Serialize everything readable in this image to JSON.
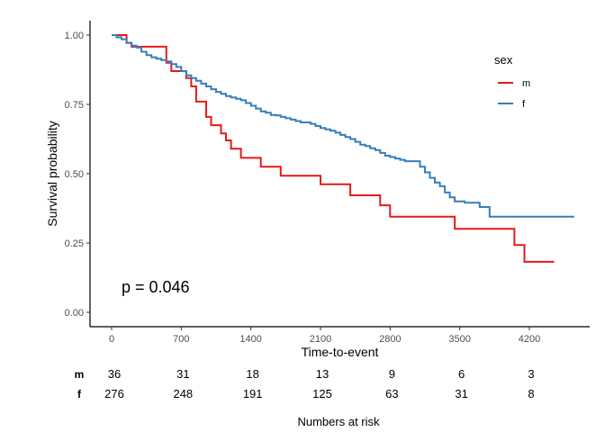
{
  "chart_data": {
    "type": "line",
    "xlabel": "Time-to-event",
    "ylabel": "Survival probability",
    "xlim": [
      -200,
      4800
    ],
    "ylim": [
      -0.05,
      1.05
    ],
    "x_ticks": [
      0,
      700,
      1400,
      2100,
      2800,
      3500,
      4200
    ],
    "y_ticks": [
      0.0,
      0.25,
      0.5,
      0.75,
      1.0
    ],
    "y_tick_labels": [
      "0.00",
      "0.25",
      "0.50",
      "0.75",
      "1.00"
    ],
    "grid": false,
    "legend": {
      "title": "sex",
      "placement": "right"
    },
    "annotation": "p = 0.046",
    "series": [
      {
        "name": "m",
        "color": "#e41a1c",
        "x": [
          0,
          150,
          200,
          250,
          550,
          600,
          750,
          800,
          850,
          950,
          1000,
          1100,
          1150,
          1200,
          1300,
          1500,
          1700,
          2100,
          2400,
          2700,
          2800,
          3450,
          4050,
          4150,
          4450
        ],
        "y": [
          1.0,
          0.972,
          0.958,
          0.958,
          0.9,
          0.87,
          0.845,
          0.815,
          0.76,
          0.705,
          0.675,
          0.645,
          0.62,
          0.59,
          0.557,
          0.525,
          0.493,
          0.462,
          0.422,
          0.386,
          0.345,
          0.301,
          0.243,
          0.182,
          0.182
        ]
      },
      {
        "name": "f",
        "color": "#377eb8",
        "x": [
          0,
          50,
          100,
          150,
          200,
          250,
          300,
          350,
          400,
          450,
          500,
          550,
          600,
          650,
          700,
          750,
          800,
          850,
          900,
          950,
          1000,
          1050,
          1100,
          1150,
          1200,
          1250,
          1300,
          1350,
          1400,
          1450,
          1500,
          1550,
          1600,
          1650,
          1700,
          1750,
          1800,
          1850,
          1900,
          1950,
          2000,
          2050,
          2100,
          2150,
          2200,
          2250,
          2300,
          2350,
          2400,
          2450,
          2500,
          2550,
          2600,
          2650,
          2700,
          2750,
          2800,
          2850,
          2900,
          2950,
          3000,
          3100,
          3150,
          3200,
          3250,
          3300,
          3350,
          3400,
          3450,
          3550,
          3700,
          3800,
          3850,
          4000,
          4200,
          4400,
          4650
        ],
        "y": [
          1.0,
          0.992,
          0.985,
          0.972,
          0.962,
          0.955,
          0.94,
          0.928,
          0.92,
          0.915,
          0.91,
          0.905,
          0.895,
          0.885,
          0.87,
          0.855,
          0.845,
          0.835,
          0.825,
          0.815,
          0.805,
          0.795,
          0.788,
          0.78,
          0.775,
          0.77,
          0.765,
          0.755,
          0.745,
          0.735,
          0.725,
          0.72,
          0.712,
          0.71,
          0.705,
          0.7,
          0.695,
          0.69,
          0.685,
          0.685,
          0.68,
          0.672,
          0.665,
          0.66,
          0.655,
          0.648,
          0.64,
          0.632,
          0.625,
          0.615,
          0.605,
          0.6,
          0.592,
          0.585,
          0.575,
          0.565,
          0.56,
          0.555,
          0.55,
          0.545,
          0.545,
          0.525,
          0.505,
          0.485,
          0.468,
          0.455,
          0.432,
          0.415,
          0.4,
          0.395,
          0.38,
          0.345,
          0.345,
          0.345,
          0.345,
          0.345,
          0.345
        ]
      }
    ],
    "risk_table": {
      "title": "Numbers at risk",
      "times": [
        0,
        700,
        1400,
        2100,
        2800,
        3500,
        4200
      ],
      "rows": [
        {
          "label": "m",
          "values": [
            "36",
            "31",
            "18",
            "13",
            "9",
            "6",
            "3"
          ]
        },
        {
          "label": "f",
          "values": [
            "276",
            "248",
            "191",
            "125",
            "63",
            "31",
            "8"
          ]
        }
      ]
    }
  }
}
